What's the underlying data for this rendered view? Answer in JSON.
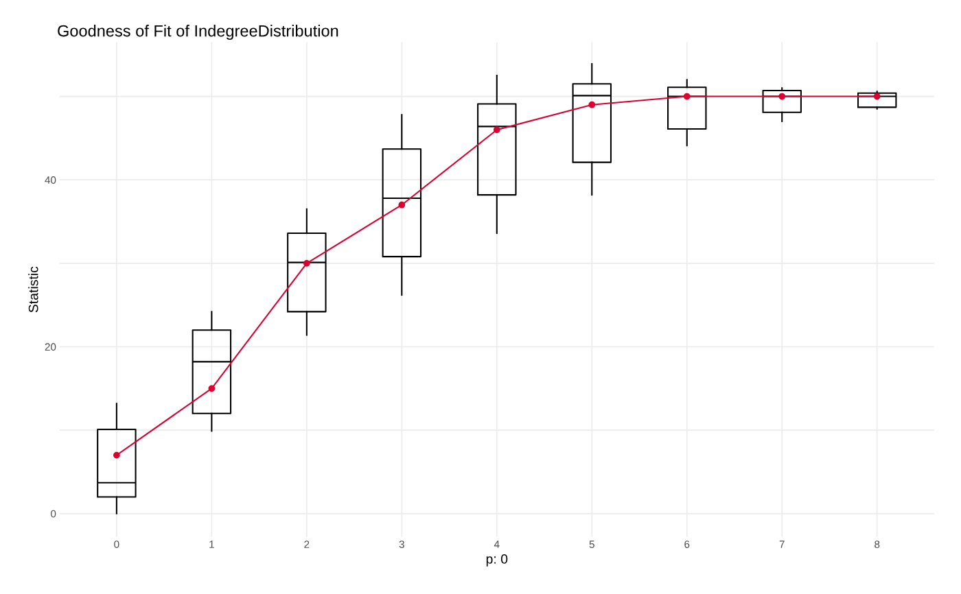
{
  "chart_data": {
    "type": "box",
    "title": "Goodness of Fit of IndegreeDistribution",
    "xlabel": "p: 0",
    "ylabel": "Statistic",
    "categories": [
      "0",
      "1",
      "2",
      "3",
      "4",
      "5",
      "6",
      "7",
      "8"
    ],
    "ylim": [
      -2.8,
      56.5
    ],
    "yticks": [
      0,
      {
        "value": 10,
        "label": null
      },
      20,
      {
        "value": 30,
        "label": null
      },
      40,
      {
        "value": 50,
        "label": null
      }
    ],
    "grid": true,
    "series": [
      {
        "color": "#000000",
        "boxes": [
          {
            "low": 0,
            "q1": 2.0,
            "median": 3.7,
            "q3": 10.1,
            "high": 13.2
          },
          {
            "low": 9.9,
            "q1": 12.0,
            "median": 18.2,
            "q3": 22.0,
            "high": 24.2
          },
          {
            "low": 21.4,
            "q1": 24.2,
            "median": 30.1,
            "q3": 33.6,
            "high": 36.5
          },
          {
            "low": 26.2,
            "q1": 30.8,
            "median": 37.8,
            "q3": 43.7,
            "high": 47.8
          },
          {
            "low": 33.6,
            "q1": 38.2,
            "median": 46.4,
            "q3": 49.1,
            "high": 52.5
          },
          {
            "low": 38.2,
            "q1": 42.1,
            "median": 50.1,
            "q3": 51.5,
            "high": 53.9
          },
          {
            "low": 44.1,
            "q1": 46.1,
            "median": 50,
            "q3": 51.1,
            "high": 52.0
          },
          {
            "low": 47.0,
            "q1": 48.1,
            "median": 50,
            "q3": 50.7,
            "high": 51.0
          },
          {
            "low": 48.5,
            "q1": 48.7,
            "median": 50,
            "q3": 50.4,
            "high": 50.6
          }
        ]
      },
      {
        "type": "line",
        "color": "#dc0030",
        "marker": "circle",
        "line_style": "solid",
        "values": [
          7,
          15,
          30,
          37,
          46,
          49,
          50,
          50,
          50
        ]
      }
    ]
  }
}
